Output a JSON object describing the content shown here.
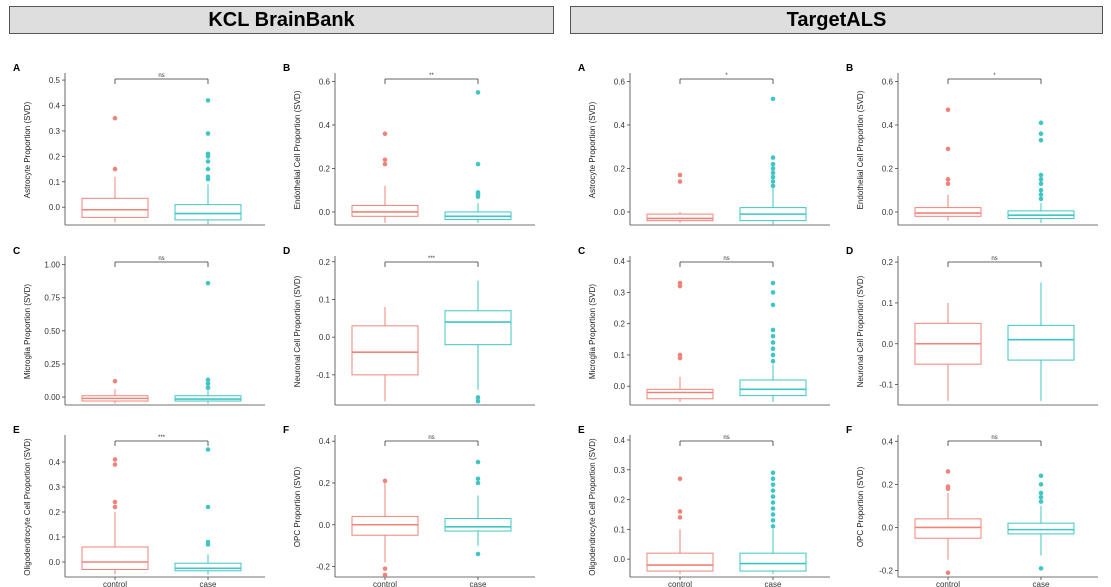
{
  "headers": {
    "left": "KCL BrainBank",
    "right": "TargetALS"
  },
  "colors": {
    "control": "#f0837a",
    "case": "#3fc6c4",
    "axis": "#444444"
  },
  "chart_data": [
    {
      "type": "box",
      "group": "KCL BrainBank",
      "letter": "A",
      "ylabel": "Astrocyte Proportion (SVD)",
      "categories": [
        "control",
        "case"
      ],
      "show_xticks": false,
      "yticks": [
        0.0,
        0.1,
        0.2,
        0.3,
        0.4,
        0.5
      ],
      "tick_labels": [
        "0.0",
        "0.1",
        "0.2",
        "0.3",
        "0.4",
        "0.5"
      ],
      "ylim": [
        -0.07,
        0.52
      ],
      "significance": "ns",
      "boxes": [
        {
          "name": "control",
          "whisker_low": -0.06,
          "q1": -0.04,
          "median": -0.01,
          "q3": 0.035,
          "whisker_high": 0.12,
          "outliers": [
            0.15,
            0.35
          ]
        },
        {
          "name": "case",
          "whisker_low": -0.07,
          "q1": -0.05,
          "median": -0.025,
          "q3": 0.01,
          "whisker_high": 0.09,
          "outliers": [
            0.11,
            0.12,
            0.15,
            0.18,
            0.2,
            0.21,
            0.29,
            0.42
          ]
        }
      ]
    },
    {
      "type": "box",
      "group": "KCL BrainBank",
      "letter": "B",
      "ylabel": "Endothelial Cell Proportion (SVD)",
      "categories": [
        "control",
        "case"
      ],
      "show_xticks": false,
      "yticks": [
        0.0,
        0.2,
        0.4,
        0.6
      ],
      "tick_labels": [
        "0.0",
        "0.2",
        "0.4",
        "0.6"
      ],
      "ylim": [
        -0.06,
        0.63
      ],
      "significance": "**",
      "boxes": [
        {
          "name": "control",
          "whisker_low": -0.05,
          "q1": -0.02,
          "median": 0.0,
          "q3": 0.03,
          "whisker_high": 0.12,
          "outliers": [
            0.22,
            0.24,
            0.36
          ]
        },
        {
          "name": "case",
          "whisker_low": -0.05,
          "q1": -0.035,
          "median": -0.02,
          "q3": 0.0,
          "whisker_high": 0.04,
          "outliers": [
            0.07,
            0.08,
            0.09,
            0.22,
            0.55
          ]
        }
      ]
    },
    {
      "type": "box",
      "group": "KCL BrainBank",
      "letter": "C",
      "ylabel": "Microglia Proportion (SVD)",
      "categories": [
        "control",
        "case"
      ],
      "show_xticks": false,
      "yticks": [
        0.0,
        0.25,
        0.5,
        0.75,
        1.0
      ],
      "tick_labels": [
        "0.00",
        "0.25",
        "0.50",
        "0.75",
        "1.00"
      ],
      "ylim": [
        -0.06,
        1.05
      ],
      "significance": "ns",
      "boxes": [
        {
          "name": "control",
          "whisker_low": -0.05,
          "q1": -0.03,
          "median": -0.01,
          "q3": 0.01,
          "whisker_high": 0.06,
          "outliers": [
            0.12
          ]
        },
        {
          "name": "case",
          "whisker_low": -0.05,
          "q1": -0.03,
          "median": -0.015,
          "q3": 0.01,
          "whisker_high": 0.05,
          "outliers": [
            0.07,
            0.1,
            0.13,
            0.86
          ]
        }
      ]
    },
    {
      "type": "box",
      "group": "KCL BrainBank",
      "letter": "D",
      "ylabel": "Neuronal Cell Proportion (SVD)",
      "categories": [
        "control",
        "case"
      ],
      "show_xticks": false,
      "yticks": [
        -0.1,
        0.0,
        0.1,
        0.2
      ],
      "tick_labels": [
        "-0.1",
        "0.0",
        "0.1",
        "0.2"
      ],
      "ylim": [
        -0.18,
        0.21
      ],
      "significance": "***",
      "boxes": [
        {
          "name": "control",
          "whisker_low": -0.17,
          "q1": -0.1,
          "median": -0.04,
          "q3": 0.03,
          "whisker_high": 0.08,
          "outliers": []
        },
        {
          "name": "case",
          "whisker_low": -0.14,
          "q1": -0.02,
          "median": 0.04,
          "q3": 0.07,
          "whisker_high": 0.15,
          "outliers": [
            -0.16,
            -0.17
          ]
        }
      ]
    },
    {
      "type": "box",
      "group": "KCL BrainBank",
      "letter": "E",
      "ylabel": "Oligodendrocyte Cell Proportion (SVD)",
      "categories": [
        "control",
        "case"
      ],
      "show_xticks": true,
      "yticks": [
        0.0,
        0.1,
        0.2,
        0.3,
        0.4
      ],
      "tick_labels": [
        "0.0",
        "0.1",
        "0.2",
        "0.3",
        "0.4"
      ],
      "ylim": [
        -0.06,
        0.5
      ],
      "significance": "***",
      "boxes": [
        {
          "name": "control",
          "whisker_low": -0.05,
          "q1": -0.03,
          "median": 0.0,
          "q3": 0.06,
          "whisker_high": 0.2,
          "outliers": [
            0.22,
            0.24,
            0.39,
            0.41
          ]
        },
        {
          "name": "case",
          "whisker_low": -0.05,
          "q1": -0.035,
          "median": -0.025,
          "q3": -0.005,
          "whisker_high": 0.03,
          "outliers": [
            0.07,
            0.08,
            0.22,
            0.45
          ]
        }
      ]
    },
    {
      "type": "box",
      "group": "KCL BrainBank",
      "letter": "F",
      "ylabel": "OPC Proportion (SVD)",
      "categories": [
        "control",
        "case"
      ],
      "show_xticks": true,
      "yticks": [
        -0.2,
        0.0,
        0.2,
        0.4
      ],
      "tick_labels": [
        "-0.2",
        "0.0",
        "0.2",
        "0.4"
      ],
      "ylim": [
        -0.25,
        0.42
      ],
      "significance": "ns",
      "boxes": [
        {
          "name": "control",
          "whisker_low": -0.18,
          "q1": -0.05,
          "median": 0.0,
          "q3": 0.04,
          "whisker_high": 0.2,
          "outliers": [
            -0.21,
            -0.24,
            0.21
          ]
        },
        {
          "name": "case",
          "whisker_low": -0.1,
          "q1": -0.03,
          "median": -0.01,
          "q3": 0.03,
          "whisker_high": 0.14,
          "outliers": [
            -0.14,
            0.2,
            0.22,
            0.3
          ]
        }
      ]
    },
    {
      "type": "box",
      "group": "TargetALS",
      "letter": "A",
      "ylabel": "Astrocyte Proportion (SVD)",
      "categories": [
        "control",
        "case"
      ],
      "show_xticks": false,
      "yticks": [
        0.0,
        0.2,
        0.4,
        0.6
      ],
      "tick_labels": [
        "0.0",
        "0.2",
        "0.4",
        "0.6"
      ],
      "ylim": [
        -0.06,
        0.63
      ],
      "significance": "*",
      "boxes": [
        {
          "name": "control",
          "whisker_low": -0.05,
          "q1": -0.04,
          "median": -0.03,
          "q3": -0.01,
          "whisker_high": 0.0,
          "outliers": [
            0.14,
            0.17
          ]
        },
        {
          "name": "case",
          "whisker_low": -0.06,
          "q1": -0.04,
          "median": -0.01,
          "q3": 0.02,
          "whisker_high": 0.11,
          "outliers": [
            0.12,
            0.14,
            0.16,
            0.18,
            0.2,
            0.22,
            0.25,
            0.52
          ]
        }
      ]
    },
    {
      "type": "box",
      "group": "TargetALS",
      "letter": "B",
      "ylabel": "Endothelial Cell Proportion (SVD)",
      "categories": [
        "control",
        "case"
      ],
      "show_xticks": false,
      "yticks": [
        0.0,
        0.2,
        0.4,
        0.6
      ],
      "tick_labels": [
        "0.0",
        "0.2",
        "0.4",
        "0.6"
      ],
      "ylim": [
        -0.06,
        0.63
      ],
      "significance": "*",
      "boxes": [
        {
          "name": "control",
          "whisker_low": -0.04,
          "q1": -0.02,
          "median": -0.005,
          "q3": 0.02,
          "whisker_high": 0.08,
          "outliers": [
            0.13,
            0.15,
            0.29,
            0.47
          ]
        },
        {
          "name": "case",
          "whisker_low": -0.05,
          "q1": -0.03,
          "median": -0.015,
          "q3": 0.005,
          "whisker_high": 0.04,
          "outliers": [
            0.06,
            0.08,
            0.1,
            0.13,
            0.15,
            0.17,
            0.33,
            0.36,
            0.41
          ]
        }
      ]
    },
    {
      "type": "box",
      "group": "TargetALS",
      "letter": "C",
      "ylabel": "Microglia Proportion (SVD)",
      "categories": [
        "control",
        "case"
      ],
      "show_xticks": false,
      "yticks": [
        0.0,
        0.1,
        0.2,
        0.3,
        0.4
      ],
      "tick_labels": [
        "0.0",
        "0.1",
        "0.2",
        "0.3",
        "0.4"
      ],
      "ylim": [
        -0.06,
        0.41
      ],
      "significance": "ns",
      "boxes": [
        {
          "name": "control",
          "whisker_low": -0.05,
          "q1": -0.04,
          "median": -0.02,
          "q3": -0.01,
          "whisker_high": 0.03,
          "outliers": [
            0.09,
            0.1,
            0.32,
            0.33
          ]
        },
        {
          "name": "case",
          "whisker_low": -0.05,
          "q1": -0.03,
          "median": -0.01,
          "q3": 0.02,
          "whisker_high": 0.07,
          "outliers": [
            0.08,
            0.1,
            0.12,
            0.14,
            0.16,
            0.18,
            0.26,
            0.3,
            0.33
          ]
        }
      ]
    },
    {
      "type": "box",
      "group": "TargetALS",
      "letter": "D",
      "ylabel": "Neuronal Cell Proportion (SVD)",
      "categories": [
        "control",
        "case"
      ],
      "show_xticks": false,
      "yticks": [
        -0.1,
        0.0,
        0.1,
        0.2
      ],
      "tick_labels": [
        "-0.1",
        "0.0",
        "0.1",
        "0.2"
      ],
      "ylim": [
        -0.15,
        0.21
      ],
      "significance": "ns",
      "boxes": [
        {
          "name": "control",
          "whisker_low": -0.14,
          "q1": -0.05,
          "median": 0.0,
          "q3": 0.05,
          "whisker_high": 0.1,
          "outliers": []
        },
        {
          "name": "case",
          "whisker_low": -0.14,
          "q1": -0.04,
          "median": 0.01,
          "q3": 0.045,
          "whisker_high": 0.15,
          "outliers": []
        }
      ]
    },
    {
      "type": "box",
      "group": "TargetALS",
      "letter": "E",
      "ylabel": "Oligodendrocyte Cell Proportion (SVD)",
      "categories": [
        "control",
        "case"
      ],
      "show_xticks": true,
      "yticks": [
        0.0,
        0.1,
        0.2,
        0.3,
        0.4
      ],
      "tick_labels": [
        "0.0",
        "0.1",
        "0.2",
        "0.3",
        "0.4"
      ],
      "ylim": [
        -0.06,
        0.41
      ],
      "significance": "ns",
      "boxes": [
        {
          "name": "control",
          "whisker_low": -0.05,
          "q1": -0.04,
          "median": -0.02,
          "q3": 0.02,
          "whisker_high": 0.1,
          "outliers": [
            0.14,
            0.16,
            0.27
          ]
        },
        {
          "name": "case",
          "whisker_low": -0.05,
          "q1": -0.04,
          "median": -0.015,
          "q3": 0.02,
          "whisker_high": 0.1,
          "outliers": [
            0.11,
            0.13,
            0.15,
            0.17,
            0.19,
            0.21,
            0.23,
            0.25,
            0.27,
            0.29
          ]
        }
      ]
    },
    {
      "type": "box",
      "group": "TargetALS",
      "letter": "F",
      "ylabel": "OPC Proportion (SVD)",
      "categories": [
        "control",
        "case"
      ],
      "show_xticks": true,
      "yticks": [
        -0.2,
        0.0,
        0.2,
        0.4
      ],
      "tick_labels": [
        "-0.2",
        "0.0",
        "0.2",
        "0.4"
      ],
      "ylim": [
        -0.23,
        0.42
      ],
      "significance": "ns",
      "boxes": [
        {
          "name": "control",
          "whisker_low": -0.15,
          "q1": -0.05,
          "median": 0.0,
          "q3": 0.04,
          "whisker_high": 0.16,
          "outliers": [
            -0.21,
            0.18,
            0.19,
            0.26
          ]
        },
        {
          "name": "case",
          "whisker_low": -0.13,
          "q1": -0.03,
          "median": -0.01,
          "q3": 0.02,
          "whisker_high": 0.1,
          "outliers": [
            -0.19,
            0.12,
            0.14,
            0.16,
            0.2,
            0.24
          ]
        }
      ]
    }
  ]
}
